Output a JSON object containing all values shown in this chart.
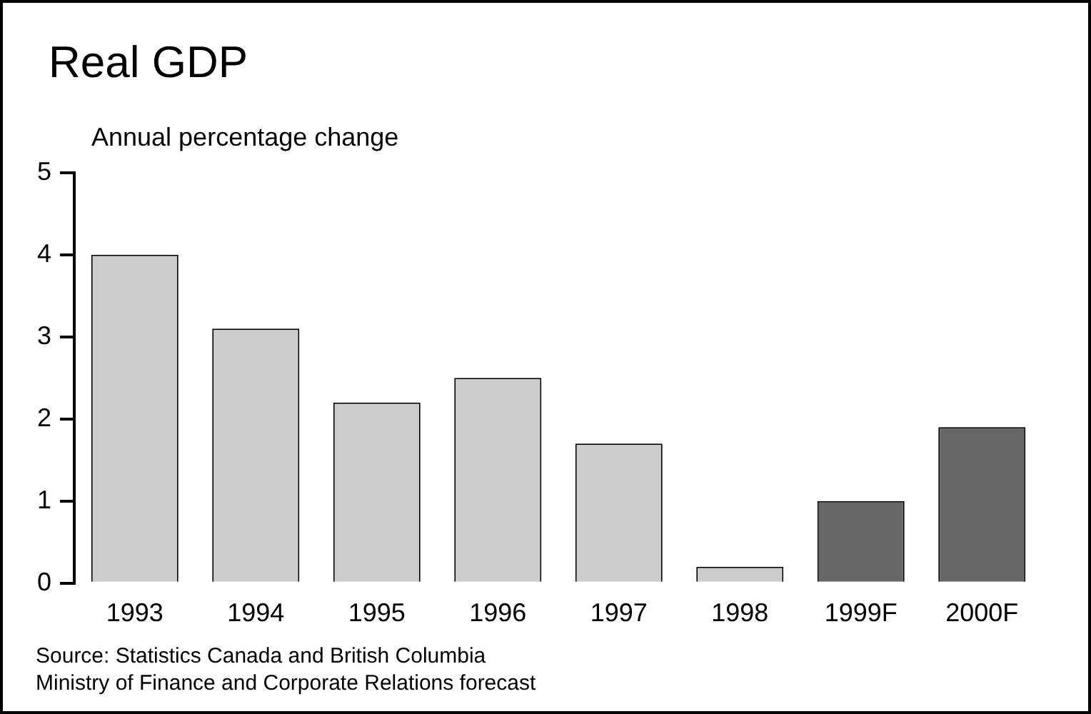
{
  "chart_data": {
    "type": "bar",
    "title": "Real GDP",
    "subtitle": "Annual percentage change",
    "categories": [
      "1993",
      "1994",
      "1995",
      "1996",
      "1997",
      "1998",
      "1999F",
      "2000F"
    ],
    "values": [
      4.0,
      3.1,
      2.2,
      2.5,
      1.7,
      0.2,
      1.0,
      1.9
    ],
    "colors": [
      "#cccccc",
      "#cccccc",
      "#cccccc",
      "#cccccc",
      "#cccccc",
      "#cccccc",
      "#666666",
      "#666666"
    ],
    "ylim": [
      0,
      5
    ],
    "yticks": [
      0,
      1,
      2,
      3,
      4,
      5
    ],
    "grid": false,
    "legend": false,
    "annotations": [
      "Source: Statistics Canada and British Columbia",
      "Ministry of Finance and Corporate Relations forecast"
    ]
  }
}
